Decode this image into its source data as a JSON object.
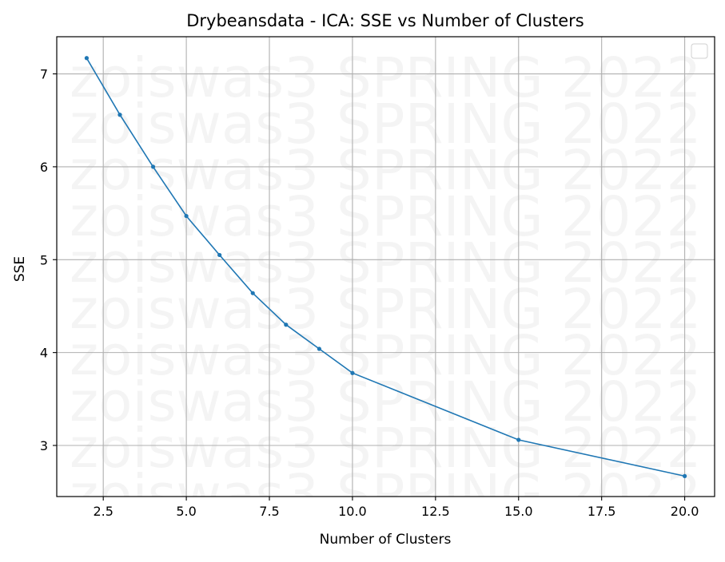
{
  "chart_data": {
    "type": "line",
    "title": "Drybeansdata - ICA: SSE vs Number of Clusters",
    "xlabel": "Number of Clusters",
    "ylabel": "SSE",
    "xlim": [
      1.1,
      20.9
    ],
    "ylim": [
      2.45,
      7.4
    ],
    "xticks": [
      2.5,
      5.0,
      7.5,
      10.0,
      12.5,
      15.0,
      17.5,
      20.0
    ],
    "xtick_labels": [
      "2.5",
      "5.0",
      "7.5",
      "10.0",
      "12.5",
      "15.0",
      "17.5",
      "20.0"
    ],
    "yticks": [
      3,
      4,
      5,
      6,
      7
    ],
    "ytick_labels": [
      "3",
      "4",
      "5",
      "6",
      "7"
    ],
    "grid": true,
    "legend": "top-right (empty)",
    "line_color": "#1f77b4",
    "series": [
      {
        "x": [
          2,
          3,
          4,
          5,
          6,
          7,
          8,
          9,
          10,
          15,
          20
        ],
        "y": [
          7.17,
          6.56,
          6.0,
          5.47,
          5.05,
          4.64,
          4.3,
          4.04,
          3.78,
          3.06,
          2.67
        ]
      }
    ],
    "watermark": "zoiswas3 SPRING 2022"
  }
}
